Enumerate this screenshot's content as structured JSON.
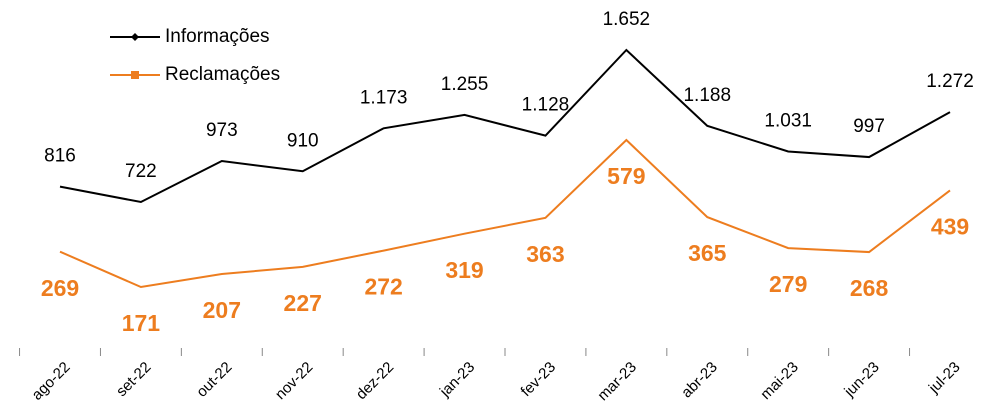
{
  "chart_data": {
    "type": "line",
    "categories": [
      "ago-22",
      "set-22",
      "out-22",
      "nov-22",
      "dez-22",
      "jan-23",
      "fev-23",
      "mar-23",
      "abr-23",
      "mai-23",
      "jun-23",
      "jul-23"
    ],
    "series": [
      {
        "name": "Informações",
        "color": "#000000",
        "values": [
          816,
          722,
          973,
          910,
          1173,
          1255,
          1128,
          1652,
          1188,
          1031,
          997,
          1272
        ],
        "value_labels": [
          "816",
          "722",
          "973",
          "910",
          "1.173",
          "1.255",
          "1.128",
          "1.652",
          "1.188",
          "1.031",
          "997",
          "1.272"
        ]
      },
      {
        "name": "Reclamações",
        "color": "#ed7d1f",
        "values": [
          269,
          171,
          207,
          227,
          272,
          319,
          363,
          579,
          365,
          279,
          268,
          439
        ]
      }
    ],
    "legend": "top-left"
  }
}
